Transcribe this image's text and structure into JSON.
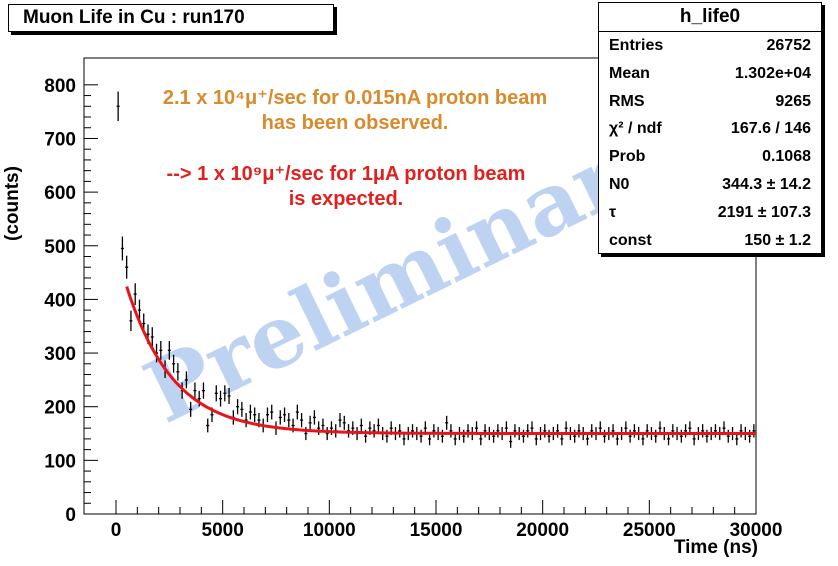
{
  "title": "Muon Life in Cu : run170",
  "stats": {
    "name": "h_life0",
    "rows": [
      {
        "key": "Entries",
        "value": "26752"
      },
      {
        "key": "Mean",
        "value": "1.302e+04"
      },
      {
        "key": "RMS",
        "value": "9265"
      },
      {
        "key": "χ² / ndf",
        "value": "167.6 / 146"
      },
      {
        "key": "Prob",
        "value": "0.1068"
      },
      {
        "key": "N0",
        "value": "344.3 ± 14.2"
      },
      {
        "key": "τ",
        "value": "2191 ± 107.3"
      },
      {
        "key": "const",
        "value": "150 ± 1.2"
      }
    ]
  },
  "annotations": {
    "orange_line1": "2.1 x 10⁴μ⁺/sec for 0.015nA proton beam",
    "orange_line2": "has been observed.",
    "red_line1": "--> 1 x 10⁹μ⁺/sec for 1μA proton beam",
    "red_line2": "is expected."
  },
  "watermark": "Preliminary",
  "colors": {
    "orange": "#d98a2a",
    "red": "#e0211f",
    "fit": "#e8141c",
    "watermark": "#a9c4ee"
  },
  "chart_data": {
    "type": "scatter",
    "title": "Muon Life in Cu : run170",
    "xlabel": "Time (ns)",
    "ylabel": "(counts)",
    "xlim": [
      -1500,
      30000
    ],
    "ylim": [
      0,
      850
    ],
    "xticks": [
      0,
      5000,
      10000,
      15000,
      20000,
      25000,
      30000
    ],
    "yticks": [
      0,
      100,
      200,
      300,
      400,
      500,
      600,
      700,
      800
    ],
    "bin_width": 200,
    "x_start": 100,
    "series": [
      {
        "values": [
          760,
          495,
          460,
          360,
          410,
          380,
          355,
          335,
          330,
          300,
          305,
          270,
          305,
          280,
          265,
          230,
          250,
          195,
          230,
          215,
          230,
          165,
          185,
          225,
          215,
          225,
          220,
          180,
          200,
          195,
          175,
          190,
          185,
          175,
          165,
          185,
          190,
          160,
          180,
          185,
          175,
          165,
          190,
          175,
          150,
          170,
          180,
          160,
          165,
          150,
          160,
          155,
          175,
          170,
          155,
          160,
          150,
          165,
          145,
          160,
          155,
          165,
          150,
          145,
          160,
          150,
          155,
          140,
          150,
          155,
          150,
          145,
          160,
          140,
          155,
          150,
          145,
          170,
          155,
          140,
          150,
          145,
          155,
          150,
          160,
          140,
          155,
          150,
          145,
          155,
          150,
          160,
          135,
          155,
          150,
          145,
          155,
          160,
          140,
          150,
          155,
          145,
          150,
          155,
          140,
          160,
          150,
          145,
          155,
          150,
          140,
          155,
          150,
          160,
          145,
          150,
          155,
          140,
          150,
          160,
          145,
          155,
          150,
          140,
          155,
          150,
          145,
          160,
          150,
          140,
          155,
          150,
          145,
          155,
          160,
          140,
          150,
          155,
          145,
          150,
          155,
          150,
          160,
          145,
          150,
          140,
          155,
          150,
          145,
          155
        ],
        "marker": "errorbar"
      }
    ],
    "fit": {
      "function": "N0*exp(-t/tau)+const",
      "N0": 344.3,
      "tau": 2191,
      "const": 150,
      "x_range": [
        500,
        30000
      ]
    }
  }
}
